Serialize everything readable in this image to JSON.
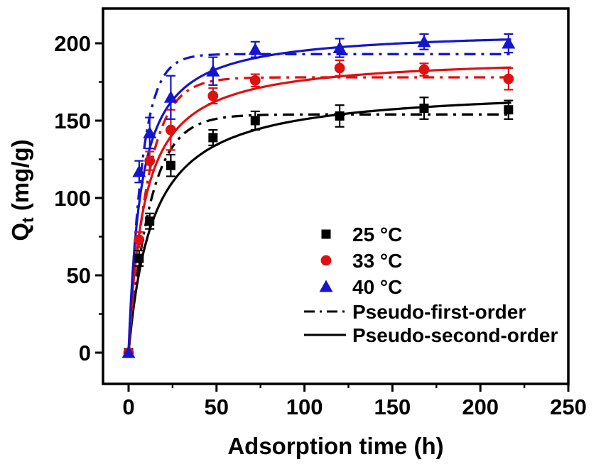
{
  "figure": {
    "background": "#ffffff",
    "frame_color": "#000000"
  },
  "chart_data": {
    "type": "scatter",
    "title": "",
    "xlabel": "Adsorption time (h)",
    "ylabel": "Qt (mg/g)",
    "ylabel_parts": {
      "base": "Q",
      "sub": "t",
      "rest": " (mg/g)"
    },
    "xlim": [
      0,
      250
    ],
    "ylim": [
      0,
      200
    ],
    "grid": false,
    "x_ticks": [
      0,
      50,
      100,
      150,
      200,
      250
    ],
    "x_minor_ticks": [
      25,
      75,
      125,
      175,
      225
    ],
    "y_ticks": [
      0,
      50,
      100,
      150,
      200
    ],
    "y_minor_ticks": [
      25,
      75,
      125,
      175
    ],
    "curve_t_end": 217.5,
    "series": [
      {
        "name": "25 °C",
        "color": "#000000",
        "marker": "square",
        "x": [
          0,
          6,
          12,
          24,
          48,
          72,
          120,
          168,
          216
        ],
        "y": [
          0,
          61,
          85,
          121,
          139,
          150,
          153,
          158,
          157
        ],
        "yerr": [
          0,
          5,
          5,
          7,
          5,
          6,
          7,
          7,
          6
        ],
        "fits": {
          "pseudo_first_order": {
            "qe": 154,
            "k1_per_h": 0.08
          },
          "pseudo_second_order": {
            "qe": 172,
            "half_time_h": 14
          }
        }
      },
      {
        "name": "33 °C",
        "color": "#de1010",
        "marker": "circle",
        "x": [
          0,
          6,
          12,
          24,
          48,
          72,
          120,
          168,
          216
        ],
        "y": [
          0,
          73,
          124,
          144,
          166,
          176,
          184,
          183,
          177
        ],
        "yerr": [
          0,
          5,
          6,
          13,
          5,
          4,
          5,
          4,
          7
        ],
        "fits": {
          "pseudo_first_order": {
            "qe": 178,
            "k1_per_h": 0.09
          },
          "pseudo_second_order": {
            "qe": 192,
            "half_time_h": 9
          }
        }
      },
      {
        "name": "40 °C",
        "color": "#1515cd",
        "marker": "triangle",
        "x": [
          0,
          6,
          12,
          24,
          48,
          72,
          120,
          168,
          216
        ],
        "y": [
          0,
          117,
          142,
          165,
          182,
          196,
          197,
          201,
          200
        ],
        "yerr": [
          0,
          7,
          10,
          14,
          9,
          5,
          6,
          5,
          6
        ],
        "fits": {
          "pseudo_first_order": {
            "qe": 193,
            "k1_per_h": 0.13
          },
          "pseudo_second_order": {
            "qe": 209,
            "half_time_h": 7
          }
        }
      }
    ],
    "legend": {
      "entries": [
        {
          "label": "25 °C",
          "type": "marker",
          "marker": "square",
          "color": "#000000"
        },
        {
          "label": "33 °C",
          "type": "marker",
          "marker": "circle",
          "color": "#de1010"
        },
        {
          "label": "40 °C",
          "type": "marker",
          "marker": "triangle",
          "color": "#1515cd"
        },
        {
          "label": "Pseudo-first-order",
          "type": "line",
          "style": "dash-dot",
          "color": "#000000"
        },
        {
          "label": "Pseudo-second-order",
          "type": "line",
          "style": "solid",
          "color": "#000000"
        }
      ]
    }
  }
}
